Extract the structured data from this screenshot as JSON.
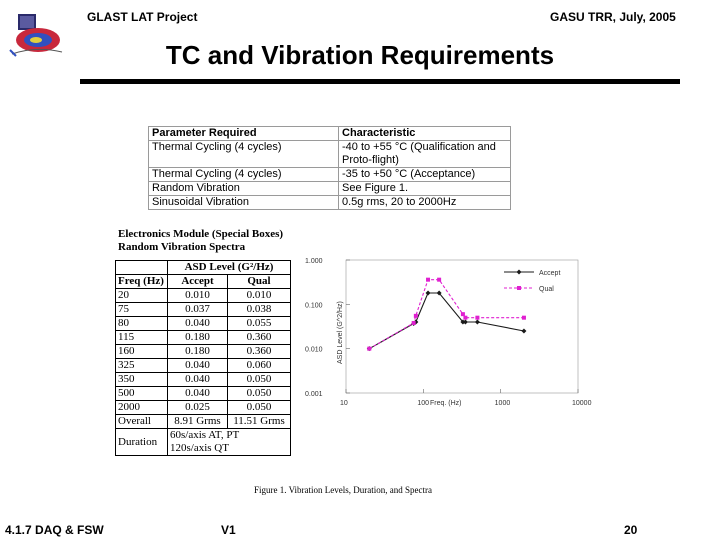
{
  "header": {
    "project": "GLAST LAT Project",
    "meeting": "GASU TRR, July, 2005"
  },
  "title": "TC and Vibration Requirements",
  "requirements": {
    "headers": [
      "Parameter Required",
      "Characteristic"
    ],
    "rows": [
      [
        "Thermal Cycling (4 cycles)",
        "-40 to +55 °C (Qualification and Proto-flight)"
      ],
      [
        "Thermal Cycling (4 cycles)",
        "-35 to +50 °C (Acceptance)"
      ],
      [
        "Random Vibration",
        "See Figure 1."
      ],
      [
        "Sinusoidal Vibration",
        "0.5g rms, 20 to 2000Hz"
      ]
    ]
  },
  "spectra": {
    "title_line1": "Electronics Module (Special Boxes)",
    "title_line2": "Random Vibration Spectra",
    "group_header": "ASD Level (G²/Hz)",
    "col_freq": "Freq (Hz)",
    "col_accept": "Accept",
    "col_qual": "Qual",
    "rows": [
      [
        "20",
        "0.010",
        "0.010"
      ],
      [
        "75",
        "0.037",
        "0.038"
      ],
      [
        "80",
        "0.040",
        "0.055"
      ],
      [
        "115",
        "0.180",
        "0.360"
      ],
      [
        "160",
        "0.180",
        "0.360"
      ],
      [
        "325",
        "0.040",
        "0.060"
      ],
      [
        "350",
        "0.040",
        "0.050"
      ],
      [
        "500",
        "0.040",
        "0.050"
      ],
      [
        "2000",
        "0.025",
        "0.050"
      ]
    ],
    "overall_label": "Overall",
    "overall_accept": "8.91 Grms",
    "overall_qual": "11.51 Grms",
    "duration_label": "Duration",
    "duration_line1": "60s/axis AT, PT",
    "duration_line2": "120s/axis QT"
  },
  "chart_data": {
    "type": "line",
    "xscale": "log",
    "yscale": "log",
    "xlim": [
      10,
      10000
    ],
    "ylim": [
      0.001,
      1.0
    ],
    "xticks": [
      "10",
      "100",
      "1000",
      "10000"
    ],
    "yticks": [
      "0.001",
      "0.010",
      "0.100",
      "1.000"
    ],
    "xlabel": "Freq. (Hz)",
    "ylabel": "ASD Level (G^2/Hz)",
    "series": [
      {
        "name": "Accept",
        "color": "#1a1a1a",
        "x": [
          20,
          75,
          80,
          115,
          160,
          325,
          350,
          500,
          2000
        ],
        "y": [
          0.01,
          0.037,
          0.04,
          0.18,
          0.18,
          0.04,
          0.04,
          0.04,
          0.025
        ]
      },
      {
        "name": "Qual",
        "color": "#e020d0",
        "x": [
          20,
          75,
          80,
          115,
          160,
          325,
          350,
          500,
          2000
        ],
        "y": [
          0.01,
          0.038,
          0.055,
          0.36,
          0.36,
          0.06,
          0.05,
          0.05,
          0.05
        ]
      }
    ]
  },
  "caption": "Figure 1. Vibration Levels, Duration, and Spectra",
  "footer": {
    "left": "4.1.7 DAQ & FSW",
    "middle": "V1",
    "page": "20"
  }
}
